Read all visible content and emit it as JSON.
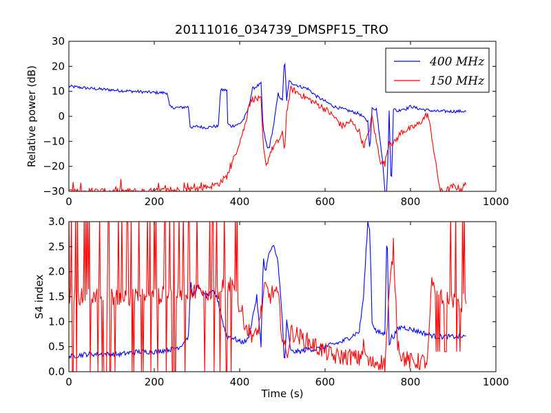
{
  "figure": {
    "title": "20111016_034739_DMSPF15_TRO"
  },
  "colors": {
    "series_400": "#0000ff",
    "series_150": "#ff0000",
    "axes": "#000000",
    "background": "#ffffff"
  },
  "chart_data": [
    {
      "type": "line",
      "title": "20111016_034739_DMSPF15_TRO",
      "xlabel": "",
      "ylabel": "Relative power (dB)",
      "xlim": [
        0,
        1000
      ],
      "ylim": [
        -30,
        30
      ],
      "xticks": [
        0,
        200,
        400,
        600,
        800,
        1000
      ],
      "yticks": [
        -30,
        -20,
        -10,
        0,
        10,
        20,
        30
      ],
      "grid": false,
      "legend": "top-right",
      "series": [
        {
          "name": "400MHz",
          "legend_label": "400 MHz",
          "x": [
            0,
            40,
            80,
            120,
            160,
            200,
            230,
            236,
            240,
            260,
            280,
            284,
            290,
            300,
            320,
            340,
            350,
            355,
            360,
            370,
            372,
            380,
            400,
            410,
            420,
            430,
            440,
            450,
            455,
            460,
            465,
            470,
            480,
            490,
            500,
            505,
            510,
            515,
            520,
            540,
            560,
            580,
            600,
            620,
            640,
            660,
            680,
            700,
            705,
            710,
            720,
            735,
            740,
            745,
            750,
            755,
            760,
            770,
            780,
            790,
            800,
            820,
            840,
            860,
            880,
            900,
            920,
            930
          ],
          "values": [
            12,
            11.3,
            10.8,
            10.3,
            9.9,
            9.5,
            9.4,
            4,
            3.5,
            3.5,
            3.8,
            -4,
            -4.5,
            -4,
            -4.5,
            -4,
            -4,
            10.5,
            10.5,
            10.5,
            -3,
            -4,
            -3,
            -1,
            3,
            11,
            12,
            13,
            -5,
            -9,
            -13,
            -12,
            -3,
            9,
            6,
            24,
            6,
            14,
            13.5,
            12,
            11,
            8,
            6,
            4,
            3,
            2,
            1,
            -2,
            -14,
            3,
            3,
            -18,
            -30,
            -30,
            2,
            -30,
            3,
            2,
            3,
            3,
            4,
            3,
            2.5,
            2,
            2,
            2,
            2,
            2
          ]
        },
        {
          "name": "150MHz",
          "legend_label": "150 MHz",
          "x": [
            0,
            100,
            150,
            200,
            250,
            300,
            330,
            350,
            370,
            380,
            390,
            400,
            410,
            415,
            420,
            430,
            440,
            450,
            455,
            460,
            465,
            470,
            480,
            490,
            500,
            505,
            510,
            520,
            540,
            560,
            580,
            600,
            620,
            640,
            660,
            680,
            690,
            700,
            710,
            720,
            730,
            740,
            750,
            760,
            780,
            800,
            820,
            840,
            850,
            860,
            870,
            880,
            900,
            920,
            930
          ],
          "values": [
            -30,
            -30,
            -30,
            -30,
            -29.5,
            -29,
            -28,
            -27,
            -24,
            -20,
            -15,
            -10,
            -5,
            -2,
            4,
            7,
            7,
            6.5,
            -12,
            -18,
            -19,
            -15,
            -12,
            -10,
            -7,
            -14,
            2,
            11,
            9,
            7,
            5,
            3,
            0,
            -4,
            -2,
            -6,
            -12,
            -8,
            0,
            -10,
            -18,
            -19,
            -10,
            -11,
            -6,
            -5,
            -3,
            1,
            -8,
            -20,
            -30,
            -30,
            -28,
            -29,
            -27
          ]
        }
      ]
    },
    {
      "type": "line",
      "title": "",
      "xlabel": "Time (s)",
      "ylabel": "S4 index",
      "xlim": [
        0,
        1000
      ],
      "ylim": [
        0,
        3
      ],
      "xticks": [
        0,
        200,
        400,
        600,
        800,
        1000
      ],
      "yticks": [
        0.0,
        0.5,
        1.0,
        1.5,
        2.0,
        2.5,
        3.0
      ],
      "grid": false,
      "series": [
        {
          "name": "400MHz",
          "x": [
            0,
            40,
            80,
            120,
            160,
            200,
            240,
            260,
            270,
            280,
            285,
            290,
            300,
            320,
            340,
            350,
            360,
            370,
            380,
            400,
            410,
            420,
            440,
            450,
            455,
            460,
            470,
            480,
            490,
            500,
            505,
            510,
            520,
            540,
            560,
            580,
            600,
            620,
            640,
            660,
            680,
            690,
            700,
            705,
            710,
            720,
            740,
            745,
            750,
            755,
            760,
            770,
            780,
            800,
            820,
            840,
            860,
            880,
            900,
            920,
            930
          ],
          "values": [
            0.3,
            0.35,
            0.35,
            0.35,
            0.4,
            0.4,
            0.45,
            0.5,
            0.6,
            0.7,
            1.8,
            1.5,
            1.7,
            1.5,
            1.6,
            1.4,
            1.0,
            0.7,
            0.7,
            0.6,
            0.6,
            0.65,
            1.5,
            0.5,
            2.3,
            2.0,
            2.4,
            2.5,
            2.2,
            1.0,
            0.1,
            1.0,
            0.4,
            0.4,
            0.45,
            0.45,
            0.5,
            0.55,
            0.6,
            0.7,
            0.8,
            1.5,
            3.0,
            2.8,
            1.0,
            0.8,
            0.75,
            3.0,
            0.5,
            0.7,
            0.7,
            0.85,
            0.9,
            0.85,
            0.8,
            0.75,
            0.7,
            0.7,
            0.7,
            0.7,
            0.7
          ]
        },
        {
          "name": "150MHz",
          "x": [
            0,
            50,
            100,
            150,
            200,
            250,
            300,
            350,
            380,
            390,
            400,
            420,
            440,
            450,
            460,
            470,
            480,
            490,
            500,
            510,
            520,
            540,
            560,
            580,
            600,
            620,
            640,
            660,
            680,
            690,
            700,
            710,
            720,
            730,
            740,
            750,
            760,
            770,
            780,
            800,
            820,
            840,
            850,
            860,
            880,
            900,
            920,
            930
          ],
          "values": [
            1.5,
            1.5,
            1.5,
            1.5,
            1.5,
            1.6,
            1.6,
            1.6,
            1.8,
            1.6,
            1.3,
            0.8,
            0.7,
            1.2,
            1.7,
            1.5,
            1.6,
            1.5,
            0.7,
            0.3,
            0.8,
            0.7,
            0.6,
            0.5,
            0.4,
            0.3,
            0.3,
            0.3,
            0.25,
            0.5,
            0.2,
            0.15,
            0.2,
            0.2,
            0.15,
            1.5,
            2.5,
            0.6,
            0.3,
            0.2,
            0.2,
            0.2,
            1.8,
            1.6,
            1.5,
            1.4,
            1.3,
            1.5
          ]
        }
      ]
    }
  ]
}
